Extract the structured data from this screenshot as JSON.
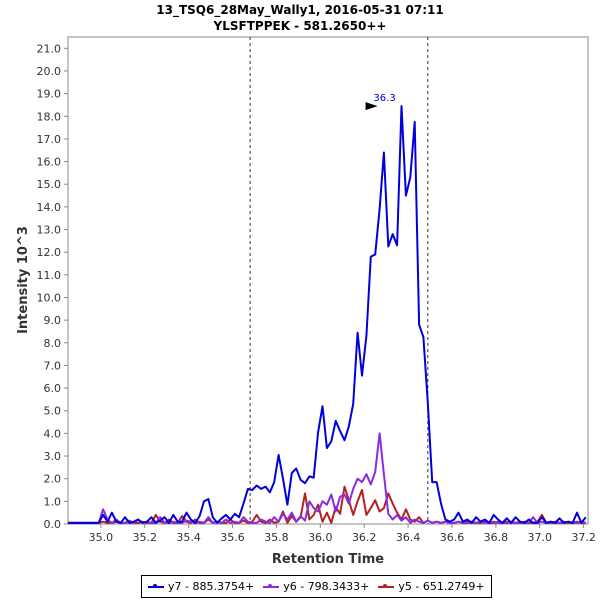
{
  "chart_data": {
    "type": "line",
    "title": "13_TSQ6_28May_Wally1, 2016-05-31 07:11",
    "subtitle": "YLSFTPPEK - 581.2650++",
    "xlabel": "Retention Time",
    "ylabel": "Intensity 10^3",
    "xlim": [
      34.85,
      37.22
    ],
    "ylim": [
      0,
      21.5
    ],
    "x_ticks": [
      "35.0",
      "35.2",
      "35.4",
      "35.6",
      "35.8",
      "36.0",
      "36.2",
      "36.4",
      "36.6",
      "36.8",
      "37.0",
      "37.2"
    ],
    "y_ticks": [
      "0.0",
      "1.0",
      "2.0",
      "3.0",
      "4.0",
      "5.0",
      "6.0",
      "7.0",
      "8.0",
      "9.0",
      "10.0",
      "11.0",
      "12.0",
      "13.0",
      "14.0",
      "15.0",
      "16.0",
      "17.0",
      "18.0",
      "19.0",
      "20.0",
      "21.0"
    ],
    "integration_bounds": [
      35.68,
      36.49
    ],
    "peak_annotation": {
      "x": 36.27,
      "y": 18.45,
      "label": "36.3"
    },
    "series": [
      {
        "name": "y7 - 885.3754+",
        "color": "#0000dd",
        "x": [
          34.85,
          34.99,
          35.01,
          35.03,
          35.05,
          35.07,
          35.09,
          35.11,
          35.13,
          35.15,
          35.17,
          35.19,
          35.21,
          35.23,
          35.25,
          35.27,
          35.29,
          35.31,
          35.33,
          35.35,
          35.37,
          35.39,
          35.41,
          35.43,
          35.45,
          35.47,
          35.49,
          35.51,
          35.53,
          35.55,
          35.57,
          35.59,
          35.61,
          35.63,
          35.65,
          35.67,
          35.69,
          35.71,
          35.73,
          35.75,
          35.77,
          35.79,
          35.81,
          35.83,
          35.85,
          35.87,
          35.89,
          35.91,
          35.93,
          35.95,
          35.97,
          35.99,
          36.01,
          36.03,
          36.05,
          36.07,
          36.09,
          36.11,
          36.13,
          36.15,
          36.17,
          36.19,
          36.21,
          36.23,
          36.25,
          36.27,
          36.29,
          36.31,
          36.33,
          36.35,
          36.37,
          36.39,
          36.41,
          36.43,
          36.45,
          36.47,
          36.49,
          36.51,
          36.53,
          36.55,
          36.57,
          36.59,
          36.61,
          36.63,
          36.65,
          36.67,
          36.69,
          36.71,
          36.73,
          36.75,
          36.77,
          36.79,
          36.81,
          36.83,
          36.85,
          36.87,
          36.89,
          36.91,
          36.93,
          36.95,
          36.97,
          36.99,
          37.01,
          37.03,
          37.05,
          37.07,
          37.09,
          37.11,
          37.13,
          37.15,
          37.17,
          37.19,
          37.21
        ],
        "values": [
          0.05,
          0.05,
          0.4,
          0.1,
          0.5,
          0.1,
          0.05,
          0.3,
          0.05,
          0.1,
          0.2,
          0.05,
          0.1,
          0.3,
          0.05,
          0.15,
          0.3,
          0.05,
          0.4,
          0.1,
          0.1,
          0.5,
          0.2,
          0.05,
          0.35,
          1.0,
          1.1,
          0.3,
          0.05,
          0.25,
          0.4,
          0.2,
          0.45,
          0.3,
          0.9,
          1.55,
          1.5,
          1.7,
          1.55,
          1.65,
          1.4,
          1.85,
          3.05,
          2.0,
          0.85,
          2.25,
          2.45,
          1.95,
          1.8,
          2.1,
          2.05,
          4.05,
          5.2,
          3.35,
          3.65,
          4.55,
          4.1,
          3.7,
          4.3,
          5.3,
          8.45,
          6.55,
          8.3,
          11.8,
          11.9,
          13.9,
          16.4,
          12.25,
          12.8,
          12.3,
          18.45,
          14.5,
          15.3,
          17.75,
          8.8,
          8.25,
          5.35,
          1.85,
          1.85,
          0.9,
          0.2,
          0.1,
          0.2,
          0.5,
          0.1,
          0.2,
          0.05,
          0.3,
          0.1,
          0.2,
          0.05,
          0.4,
          0.2,
          0.05,
          0.25,
          0.05,
          0.3,
          0.1,
          0.05,
          0.2,
          0.05,
          0.05,
          0.3,
          0.05,
          0.1,
          0.05,
          0.25,
          0.05,
          0.1,
          0.05,
          0.5,
          0.05,
          0.3
        ]
      },
      {
        "name": "y6 - 798.3433+",
        "color": "#8a2be2",
        "x": [
          34.85,
          34.99,
          35.01,
          35.03,
          35.05,
          35.07,
          35.09,
          35.11,
          35.13,
          35.15,
          35.17,
          35.19,
          35.21,
          35.23,
          35.25,
          35.27,
          35.29,
          35.31,
          35.33,
          35.35,
          35.37,
          35.39,
          35.41,
          35.43,
          35.45,
          35.47,
          35.49,
          35.51,
          35.53,
          35.55,
          35.57,
          35.59,
          35.61,
          35.63,
          35.65,
          35.67,
          35.69,
          35.71,
          35.73,
          35.75,
          35.77,
          35.79,
          35.81,
          35.83,
          35.85,
          35.87,
          35.89,
          35.91,
          35.93,
          35.95,
          35.97,
          35.99,
          36.01,
          36.03,
          36.05,
          36.07,
          36.09,
          36.11,
          36.13,
          36.15,
          36.17,
          36.19,
          36.21,
          36.23,
          36.25,
          36.27,
          36.29,
          36.31,
          36.33,
          36.35,
          36.37,
          36.39,
          36.41,
          36.43,
          36.45,
          36.47,
          36.49,
          36.51,
          36.53,
          36.55,
          36.57,
          36.59,
          36.61,
          36.63,
          36.65,
          36.67,
          36.69,
          36.71,
          36.73,
          36.75,
          36.77,
          36.79,
          36.81,
          36.83,
          36.85,
          36.87,
          36.89,
          36.91,
          36.93,
          36.95,
          36.97,
          36.99,
          37.01,
          37.03,
          37.05,
          37.07,
          37.09,
          37.11,
          37.13,
          37.15,
          37.17,
          37.19,
          37.21
        ],
        "values": [
          0.05,
          0.05,
          0.65,
          0.2,
          0.05,
          0.2,
          0.05,
          0.05,
          0.15,
          0.05,
          0.2,
          0.05,
          0.1,
          0.05,
          0.05,
          0.3,
          0.05,
          0.05,
          0.1,
          0.05,
          0.05,
          0.15,
          0.1,
          0.05,
          0.1,
          0.05,
          0.3,
          0.05,
          0.1,
          0.05,
          0.2,
          0.05,
          0.1,
          0.05,
          0.3,
          0.1,
          0.05,
          0.05,
          0.2,
          0.1,
          0.05,
          0.3,
          0.1,
          0.45,
          0.2,
          0.5,
          0.1,
          0.35,
          0.15,
          1.0,
          0.7,
          0.55,
          1.0,
          0.85,
          1.3,
          0.55,
          1.2,
          1.3,
          0.9,
          1.55,
          2.0,
          1.85,
          2.2,
          1.75,
          2.3,
          4.0,
          2.2,
          0.45,
          0.2,
          0.4,
          0.15,
          0.3,
          0.05,
          0.2,
          0.1,
          0.05,
          0.15,
          0.05,
          0.1,
          0.05,
          0.1,
          0.05,
          0.05,
          0.1,
          0.05,
          0.1,
          0.05,
          0.05,
          0.1,
          0.05,
          0.05,
          0.1,
          0.05,
          0.05,
          0.1,
          0.05,
          0.05,
          0.1,
          0.05,
          0.05,
          0.3,
          0.05,
          0.1,
          0.05,
          0.05,
          0.1,
          0.05,
          0.05,
          0.1,
          0.05,
          0.05,
          0.1,
          0.05
        ]
      },
      {
        "name": "y5 - 651.2749+",
        "color": "#b22222",
        "x": [
          34.85,
          34.99,
          35.01,
          35.03,
          35.05,
          35.07,
          35.09,
          35.11,
          35.13,
          35.15,
          35.17,
          35.19,
          35.21,
          35.23,
          35.25,
          35.27,
          35.29,
          35.31,
          35.33,
          35.35,
          35.37,
          35.39,
          35.41,
          35.43,
          35.45,
          35.47,
          35.49,
          35.51,
          35.53,
          35.55,
          35.57,
          35.59,
          35.61,
          35.63,
          35.65,
          35.67,
          35.69,
          35.71,
          35.73,
          35.75,
          35.77,
          35.79,
          35.81,
          35.83,
          35.85,
          35.87,
          35.89,
          35.91,
          35.93,
          35.95,
          35.97,
          35.99,
          36.01,
          36.03,
          36.05,
          36.07,
          36.09,
          36.11,
          36.13,
          36.15,
          36.17,
          36.19,
          36.21,
          36.23,
          36.25,
          36.27,
          36.29,
          36.31,
          36.33,
          36.35,
          36.37,
          36.39,
          36.41,
          36.43,
          36.45,
          36.47,
          36.49,
          36.51,
          36.53,
          36.55,
          36.57,
          36.59,
          36.61,
          36.63,
          36.65,
          36.67,
          36.69,
          36.71,
          36.73,
          36.75,
          36.77,
          36.79,
          36.81,
          36.83,
          36.85,
          36.87,
          36.89,
          36.91,
          36.93,
          36.95,
          36.97,
          36.99,
          37.01,
          37.03,
          37.05,
          37.07,
          37.09,
          37.11,
          37.13,
          37.15,
          37.17,
          37.19,
          37.21
        ],
        "values": [
          0.05,
          0.05,
          0.1,
          0.05,
          0.05,
          0.1,
          0.05,
          0.05,
          0.1,
          0.05,
          0.05,
          0.1,
          0.05,
          0.05,
          0.4,
          0.1,
          0.05,
          0.2,
          0.05,
          0.05,
          0.35,
          0.1,
          0.05,
          0.2,
          0.05,
          0.05,
          0.2,
          0.05,
          0.1,
          0.05,
          0.05,
          0.2,
          0.05,
          0.05,
          0.15,
          0.05,
          0.1,
          0.4,
          0.1,
          0.05,
          0.2,
          0.05,
          0.1,
          0.55,
          0.05,
          0.35,
          0.1,
          0.3,
          1.35,
          0.2,
          0.4,
          0.85,
          0.1,
          0.5,
          0.05,
          0.75,
          0.45,
          1.65,
          1.05,
          0.4,
          1.0,
          1.5,
          0.4,
          0.7,
          1.05,
          0.55,
          0.7,
          1.35,
          0.9,
          0.5,
          0.2,
          0.65,
          0.2,
          0.1,
          0.3,
          0.05,
          0.15,
          0.05,
          0.1,
          0.05,
          0.1,
          0.05,
          0.05,
          0.1,
          0.05,
          0.05,
          0.1,
          0.05,
          0.05,
          0.1,
          0.05,
          0.05,
          0.1,
          0.05,
          0.05,
          0.1,
          0.05,
          0.05,
          0.1,
          0.05,
          0.05,
          0.1,
          0.4,
          0.05,
          0.1,
          0.05,
          0.05,
          0.1,
          0.05,
          0.05,
          0.1,
          0.05,
          0.05
        ]
      }
    ]
  }
}
